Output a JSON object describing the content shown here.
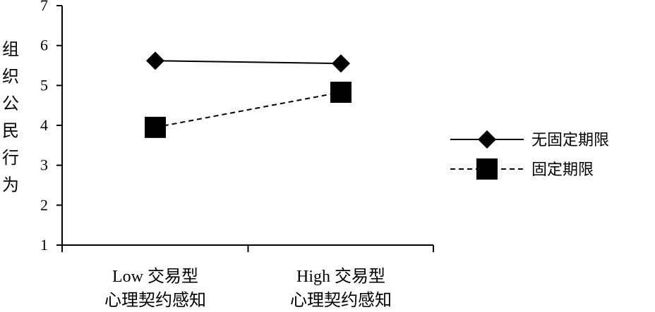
{
  "chart_data": {
    "type": "line",
    "title": "",
    "xlabel": "",
    "ylabel": "组织公民行为",
    "ylim": [
      1,
      7
    ],
    "yticks": [
      "1",
      "2",
      "3",
      "4",
      "5",
      "6",
      "7"
    ],
    "categories": [
      [
        "Low 交易型",
        "心理契约感知"
      ],
      [
        "High 交易型",
        "心理契约感知"
      ]
    ],
    "series": [
      {
        "name": "无固定期限",
        "values": [
          5.62,
          5.55
        ],
        "marker": "diamond",
        "line_style": "solid"
      },
      {
        "name": "固定期限",
        "values": [
          3.95,
          4.83
        ],
        "marker": "square",
        "line_style": "dashed"
      }
    ],
    "grid": false,
    "legend_position": "right"
  }
}
